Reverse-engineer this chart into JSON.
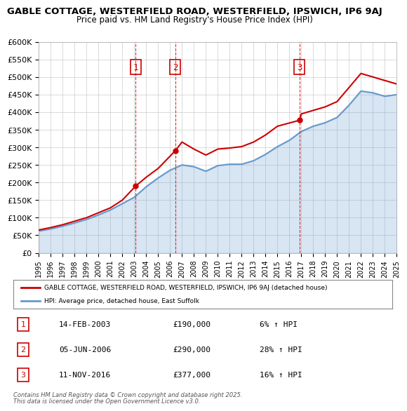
{
  "title": "GABLE COTTAGE, WESTERFIELD ROAD, WESTERFIELD, IPSWICH, IP6 9AJ",
  "subtitle": "Price paid vs. HM Land Registry's House Price Index (HPI)",
  "legend_line1": "GABLE COTTAGE, WESTERFIELD ROAD, WESTERFIELD, IPSWICH, IP6 9AJ (detached house)",
  "legend_line2": "HPI: Average price, detached house, East Suffolk",
  "footer1": "Contains HM Land Registry data © Crown copyright and database right 2025.",
  "footer2": "This data is licensed under the Open Government Licence v3.0.",
  "sales": [
    {
      "num": 1,
      "date": "14-FEB-2003",
      "price": 190000,
      "pct": "6%",
      "year": 2003.12
    },
    {
      "num": 2,
      "date": "05-JUN-2006",
      "price": 290000,
      "pct": "28%",
      "year": 2006.43
    },
    {
      "num": 3,
      "date": "11-NOV-2016",
      "price": 377000,
      "pct": "16%",
      "year": 2016.86
    }
  ],
  "hpi_years": [
    1995,
    1996,
    1997,
    1998,
    1999,
    2000,
    2001,
    2002,
    2003,
    2004,
    2005,
    2006,
    2007,
    2008,
    2009,
    2010,
    2011,
    2012,
    2013,
    2014,
    2015,
    2016,
    2017,
    2018,
    2019,
    2020,
    2021,
    2022,
    2023,
    2024,
    2025
  ],
  "hpi_values": [
    62000,
    68000,
    76000,
    85000,
    95000,
    108000,
    122000,
    140000,
    158000,
    188000,
    213000,
    235000,
    250000,
    245000,
    232000,
    248000,
    252000,
    252000,
    262000,
    280000,
    302000,
    320000,
    345000,
    360000,
    370000,
    385000,
    420000,
    460000,
    455000,
    445000,
    450000
  ],
  "red_years": [
    1995,
    1996,
    1997,
    1998,
    1999,
    2000,
    2001,
    2002,
    2003.12,
    2004,
    2005,
    2006.43,
    2007,
    2008,
    2009,
    2010,
    2011,
    2012,
    2013,
    2014,
    2015,
    2016.86,
    2017,
    2018,
    2019,
    2020,
    2021,
    2022,
    2023,
    2024,
    2025
  ],
  "red_values": [
    65000,
    72000,
    80000,
    90000,
    100000,
    114000,
    128000,
    150000,
    190000,
    215000,
    240000,
    290000,
    315000,
    295000,
    278000,
    295000,
    298000,
    302000,
    315000,
    335000,
    360000,
    377000,
    395000,
    405000,
    415000,
    430000,
    470000,
    510000,
    500000,
    490000,
    480000
  ],
  "ylim": [
    0,
    600000
  ],
  "xlim": [
    1995,
    2025
  ],
  "yticks": [
    0,
    50000,
    100000,
    150000,
    200000,
    250000,
    300000,
    350000,
    400000,
    450000,
    500000,
    550000,
    600000
  ],
  "ytick_labels": [
    "£0",
    "£50K",
    "£100K",
    "£150K",
    "£200K",
    "£250K",
    "£300K",
    "£350K",
    "£400K",
    "£450K",
    "£500K",
    "£550K",
    "£600K"
  ],
  "xticks": [
    1995,
    1996,
    1997,
    1998,
    1999,
    2000,
    2001,
    2002,
    2003,
    2004,
    2005,
    2006,
    2007,
    2008,
    2009,
    2010,
    2011,
    2012,
    2013,
    2014,
    2015,
    2016,
    2017,
    2018,
    2019,
    2020,
    2021,
    2022,
    2023,
    2024,
    2025
  ],
  "red_color": "#cc0000",
  "blue_color": "#6699cc",
  "bg_color": "#ffffff",
  "grid_color": "#cccccc",
  "sale_vline_color": "#cc0000",
  "sale_box_color": "#cc0000",
  "sale_label_color": "#cc0000"
}
